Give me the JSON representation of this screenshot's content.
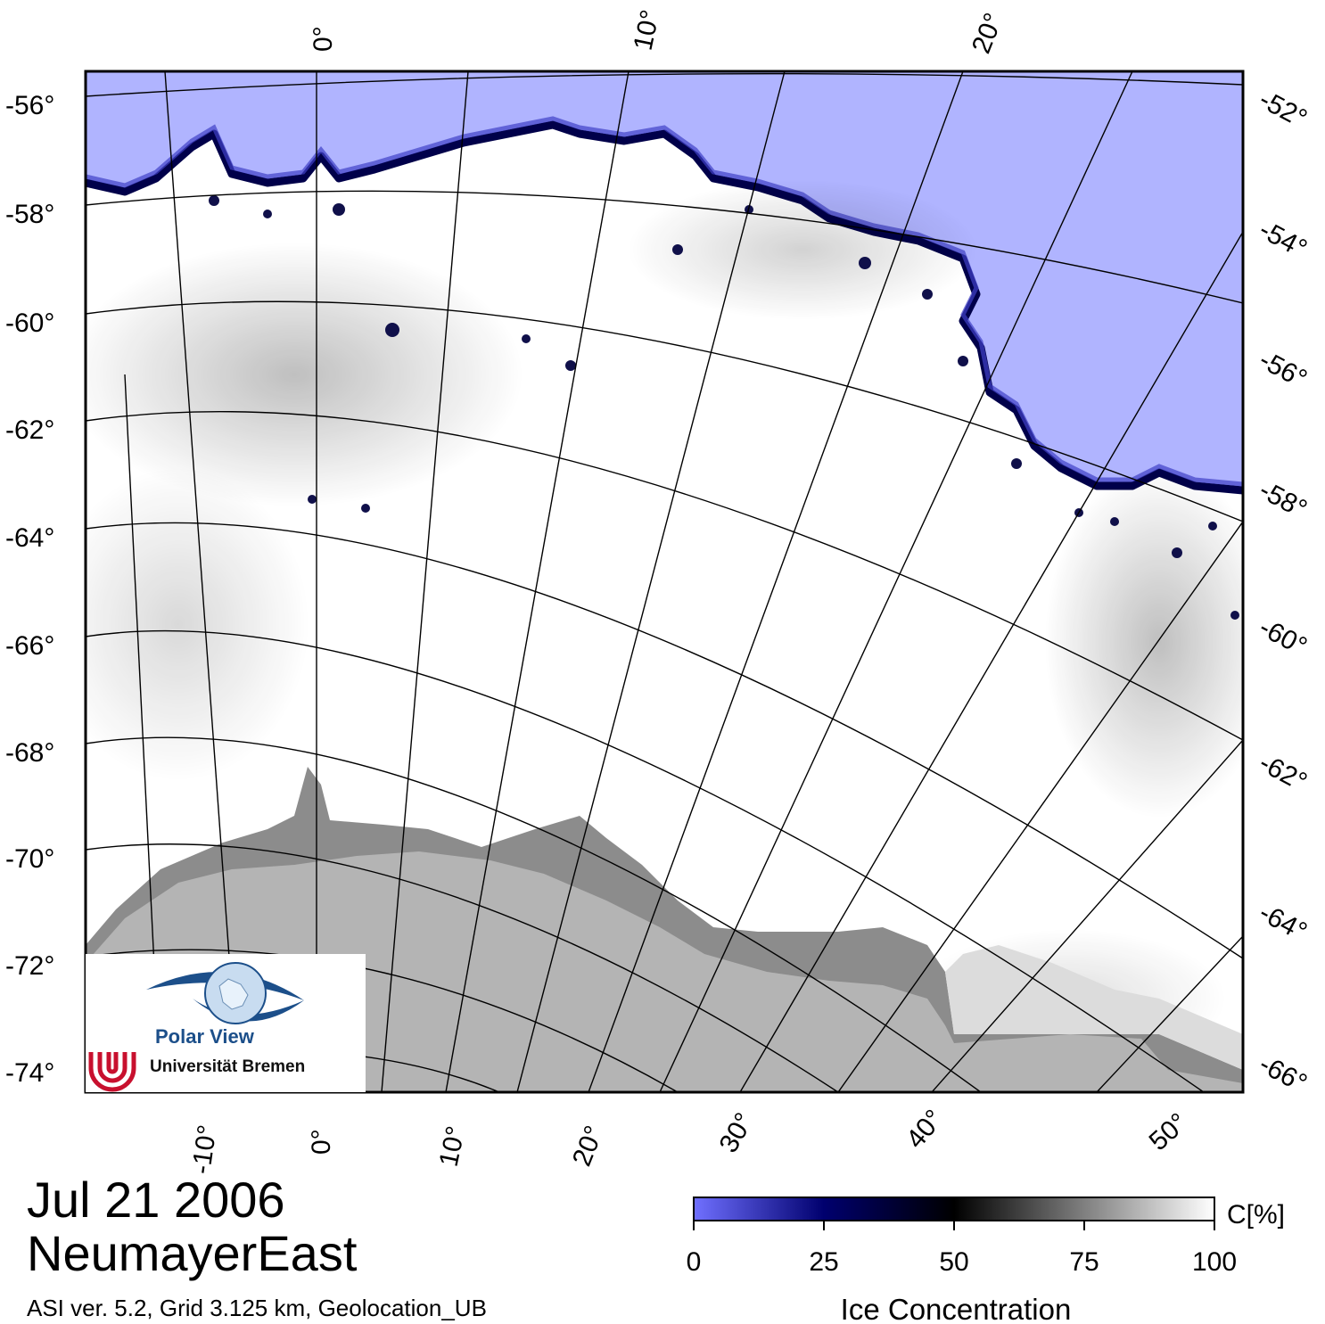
{
  "map": {
    "title_date": "Jul 21 2006",
    "region": "NeumayerEast",
    "product_info": "ASI ver. 5.2,  Grid 3.125 km, Geolocation_UB",
    "colors": {
      "open_water": "#b0b4ff",
      "ice_full": "#ffffff",
      "ice_mid": "#000000",
      "ice_low": "#000070",
      "land": "#b4b4b4",
      "ice_shelf": "#8c8c8c",
      "graticule": "#000000"
    },
    "top_longitude_labels": [
      "0°",
      "10°",
      "20°"
    ],
    "bottom_longitude_labels": [
      "-10°",
      "0°",
      "10°",
      "20°",
      "30°",
      "40°",
      "50°"
    ],
    "left_latitude_labels": [
      "-56°",
      "-58°",
      "-60°",
      "-62°",
      "-64°",
      "-66°",
      "-68°",
      "-70°",
      "-72°",
      "-74°"
    ],
    "right_latitude_labels": [
      "-52°",
      "-54°",
      "-56°",
      "-58°",
      "-60°",
      "-62°",
      "-64°",
      "-66°"
    ]
  },
  "colorbar": {
    "unit": "C[%]",
    "title": "Ice Concentration",
    "ticks": [
      "0",
      "25",
      "50",
      "75",
      "100"
    ],
    "stops": [
      "#7070ff",
      "#00006e",
      "#000000",
      "#ffffff"
    ]
  },
  "logo": {
    "brand": "Polar View",
    "institution": "Universität Bremen",
    "eye_icon": "eye-globe-icon",
    "university_icon": "bremen-u-logo"
  }
}
